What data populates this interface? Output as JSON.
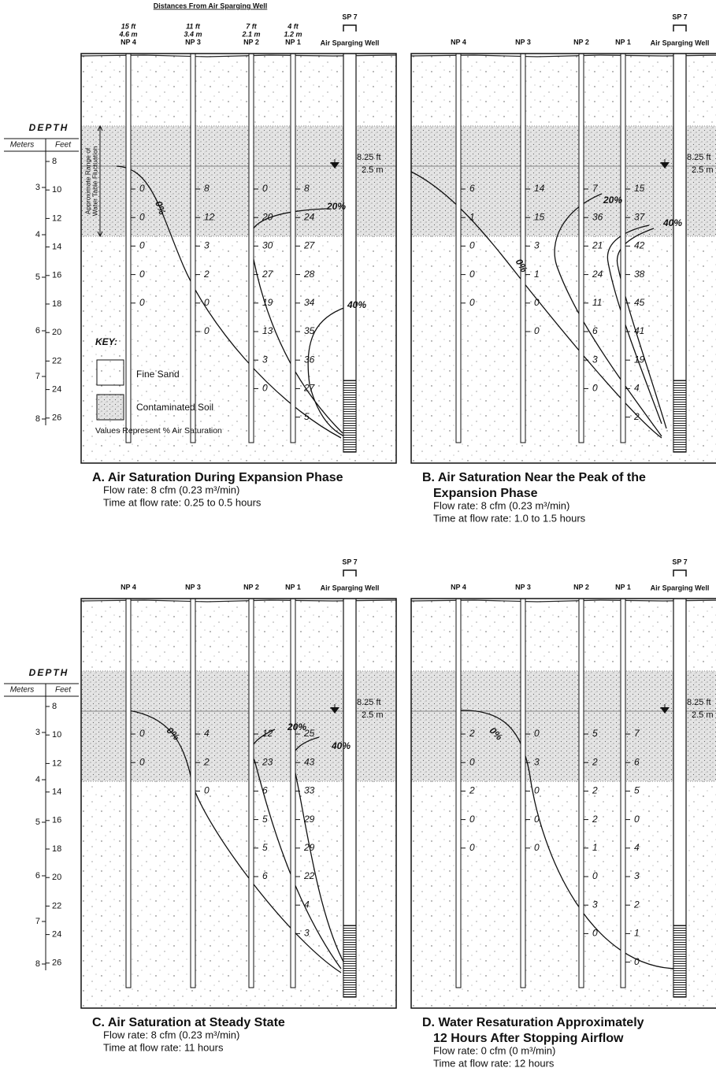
{
  "depth_axis": {
    "title": "DEPTH",
    "meters_label": "Meters",
    "feet_label": "Feet",
    "meters": [
      3,
      4,
      5,
      6,
      7,
      8
    ],
    "feet": [
      8,
      10,
      12,
      14,
      16,
      18,
      20,
      22,
      24,
      26
    ]
  },
  "key": {
    "title": "KEY:",
    "fine_sand": "Fine Sand",
    "contaminated_soil": "Contaminated Soil",
    "note": "Values Represent % Air Saturation"
  },
  "distances_title": "Distances From Air Sparging Well",
  "fluctuation_label": [
    "Approximate Range of",
    "Water Table Fluctuation"
  ],
  "panels": [
    {
      "sp_name": "SP 7",
      "sp_caption": "Air Sparging Well",
      "water_table_ft": "8.25 ft",
      "water_table_m": "2.5 m",
      "wells": [
        {
          "name": "NP 4",
          "distance_ft": "15 ft",
          "distance_m": "4.6 m",
          "values": [
            0,
            0,
            0,
            0,
            0
          ]
        },
        {
          "name": "NP 3",
          "distance_ft": "11 ft",
          "distance_m": "3.4 m",
          "values": [
            8,
            12,
            3,
            2,
            0,
            0
          ]
        },
        {
          "name": "NP 2",
          "distance_ft": "7 ft",
          "distance_m": "2.1 m",
          "values": [
            0,
            20,
            30,
            27,
            19,
            13,
            3,
            0
          ]
        },
        {
          "name": "NP 1",
          "distance_ft": "4 ft",
          "distance_m": "1.2 m",
          "values": [
            8,
            24,
            27,
            28,
            34,
            35,
            36,
            27,
            5
          ]
        }
      ],
      "contour_labels": [
        "0%",
        "20%",
        "40%"
      ],
      "caption": {
        "title": [
          "A. Air Saturation During Expansion Phase"
        ],
        "lines": [
          "Flow rate: 8 cfm (0.23 m³/min)",
          "Time at flow rate: 0.25 to 0.5 hours"
        ]
      }
    },
    {
      "sp_name": "SP 7",
      "sp_caption": "Air Sparging Well",
      "water_table_ft": "8.25 ft",
      "water_table_m": "2.5 m",
      "wells": [
        {
          "name": "NP 4",
          "values": [
            6,
            1,
            0,
            0,
            0
          ]
        },
        {
          "name": "NP 3",
          "values": [
            14,
            15,
            3,
            1,
            0,
            0
          ]
        },
        {
          "name": "NP 2",
          "values": [
            7,
            36,
            21,
            24,
            11,
            6,
            3,
            0
          ]
        },
        {
          "name": "NP 1",
          "values": [
            15,
            37,
            42,
            38,
            45,
            41,
            19,
            4,
            2
          ]
        }
      ],
      "contour_labels": [
        "0%",
        "20%",
        "40%"
      ],
      "caption": {
        "title": [
          "B. Air Saturation Near the Peak of the",
          "Expansion Phase"
        ],
        "lines": [
          "Flow rate: 8 cfm (0.23 m³/min)",
          "Time at flow rate: 1.0 to 1.5 hours"
        ]
      }
    },
    {
      "sp_name": "SP 7",
      "sp_caption": "Air Sparging Well",
      "water_table_ft": "8.25 ft",
      "water_table_m": "2.5 m",
      "wells": [
        {
          "name": "NP 4",
          "values": [
            0,
            0
          ]
        },
        {
          "name": "NP 3",
          "values": [
            4,
            2,
            0
          ]
        },
        {
          "name": "NP 2",
          "values": [
            12,
            23,
            6,
            5,
            5,
            6
          ]
        },
        {
          "name": "NP 1",
          "values": [
            25,
            43,
            33,
            29,
            29,
            22,
            4,
            3
          ]
        }
      ],
      "contour_labels": [
        "0%",
        "20%",
        "40%"
      ],
      "caption": {
        "title": [
          "C. Air Saturation at Steady State"
        ],
        "lines": [
          "Flow rate: 8 cfm (0.23 m³/min)",
          "Time at flow rate: 11 hours"
        ]
      }
    },
    {
      "sp_name": "SP 7",
      "sp_caption": "Air Sparging Well",
      "water_table_ft": "8.25 ft",
      "water_table_m": "2.5 m",
      "wells": [
        {
          "name": "NP 4",
          "values": [
            2,
            0,
            2,
            0,
            0
          ]
        },
        {
          "name": "NP 3",
          "values": [
            0,
            3,
            0,
            0,
            0
          ]
        },
        {
          "name": "NP 2",
          "values": [
            5,
            2,
            2,
            2,
            1,
            0,
            3,
            0
          ]
        },
        {
          "name": "NP 1",
          "values": [
            7,
            6,
            5,
            0,
            4,
            3,
            2,
            1,
            0
          ]
        }
      ],
      "contour_labels": [
        "0%"
      ],
      "caption": {
        "title": [
          "D. Water Resaturation Approximately",
          "12 Hours After Stopping Airflow"
        ],
        "lines": [
          "Flow rate: 0 cfm (0 m³/min)",
          "Time at flow rate: 12 hours"
        ]
      }
    }
  ]
}
